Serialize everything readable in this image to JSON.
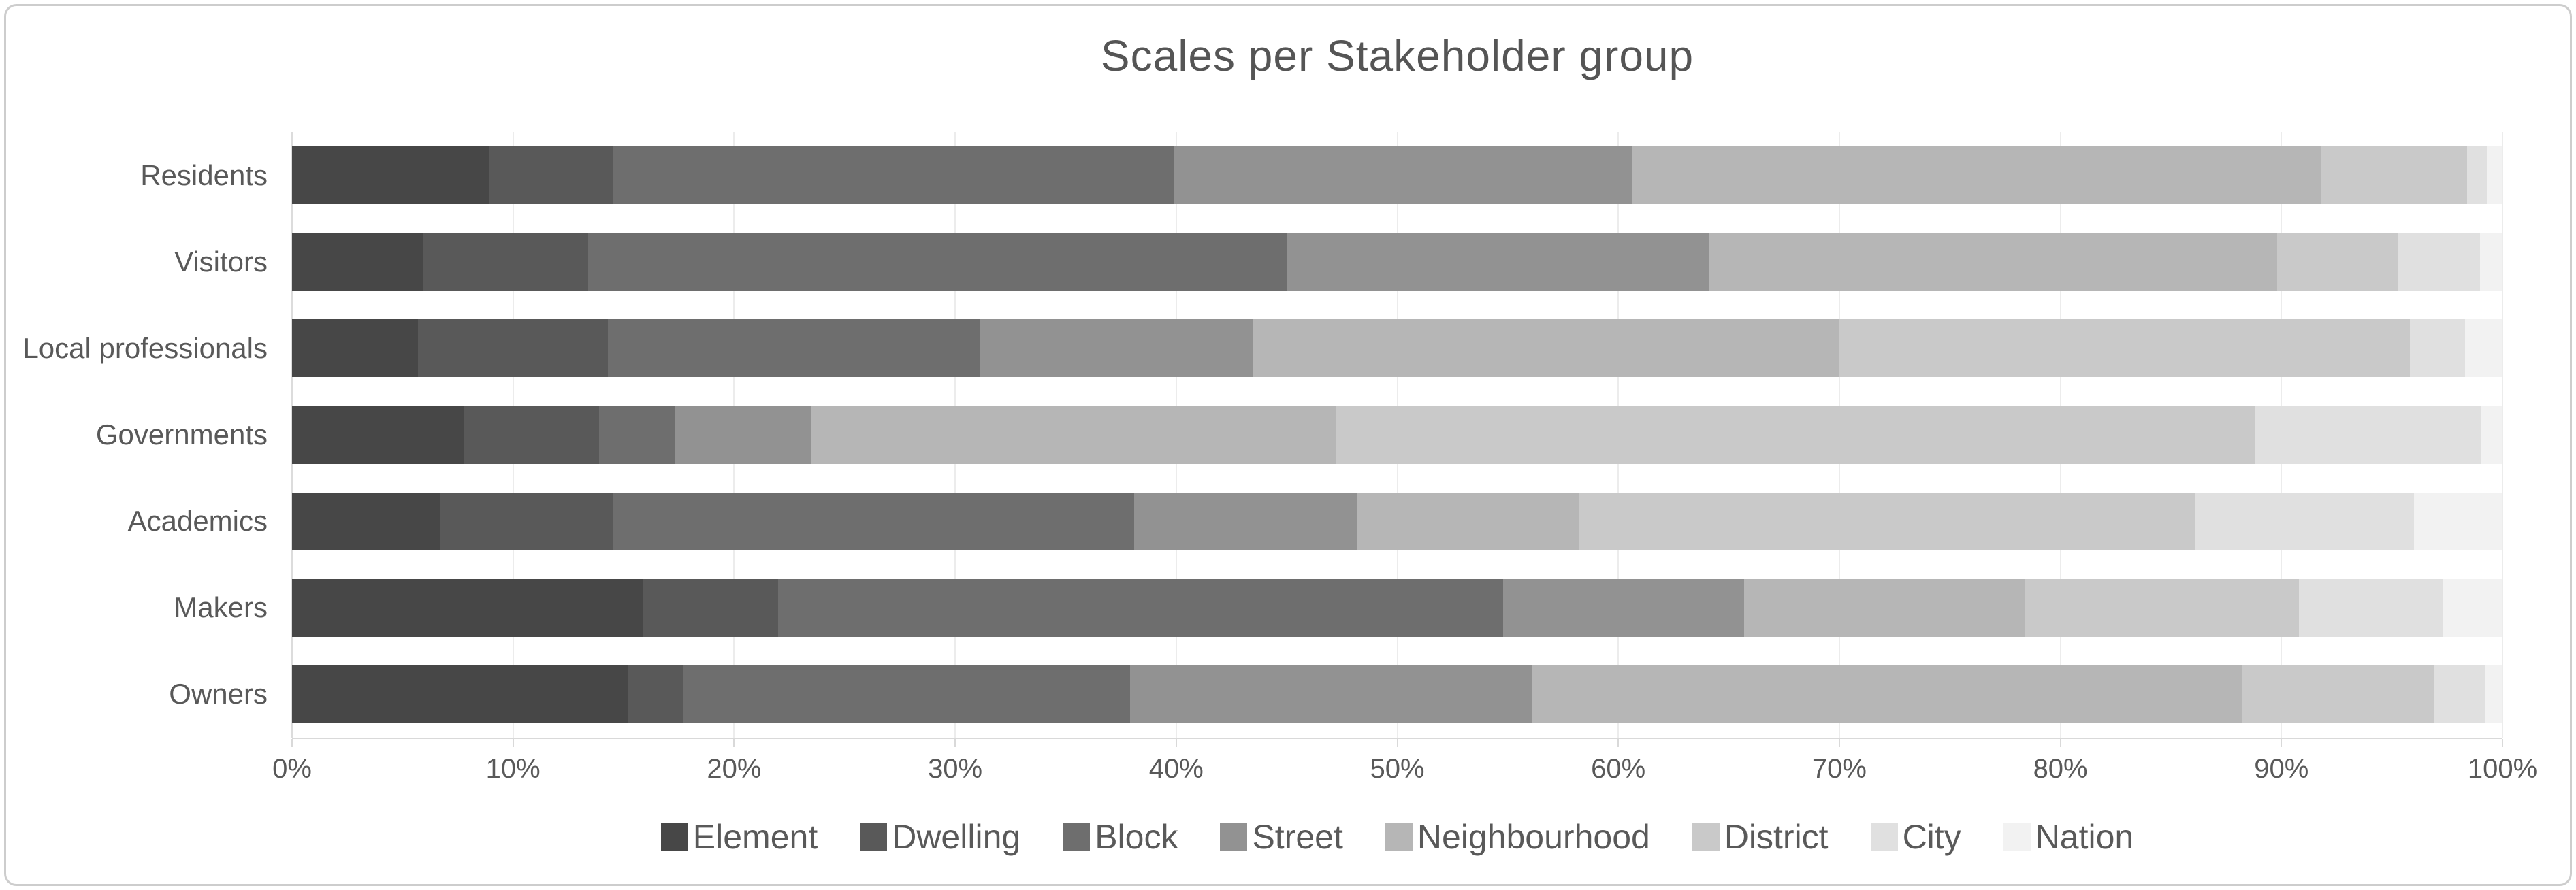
{
  "title": "Scales per Stakeholder group",
  "chart_data": {
    "type": "bar",
    "orientation": "horizontal",
    "stacked": true,
    "percent_stacked": true,
    "title": "Scales per Stakeholder group",
    "categories": [
      "Residents",
      "Visitors",
      "Local professionals",
      "Governments",
      "Academics",
      "Makers",
      "Owners"
    ],
    "series": [
      {
        "name": "Element",
        "color": "#474747",
        "values": [
          8.9,
          5.9,
          5.7,
          7.8,
          6.7,
          15.9,
          15.2
        ]
      },
      {
        "name": "Dwelling",
        "color": "#595959",
        "values": [
          5.6,
          7.5,
          8.6,
          6.1,
          7.8,
          6.1,
          2.5
        ]
      },
      {
        "name": "Block",
        "color": "#6e6e6e",
        "values": [
          25.4,
          31.6,
          16.8,
          3.4,
          23.6,
          32.8,
          20.2
        ]
      },
      {
        "name": "Street",
        "color": "#929292",
        "values": [
          20.7,
          19.1,
          12.4,
          6.2,
          10.1,
          10.9,
          18.2
        ]
      },
      {
        "name": "Neighbourhood",
        "color": "#b6b6b6",
        "values": [
          31.2,
          25.7,
          26.5,
          23.7,
          10.0,
          12.7,
          32.1
        ]
      },
      {
        "name": "District",
        "color": "#c9c9c9",
        "values": [
          6.6,
          5.5,
          25.8,
          41.6,
          27.9,
          12.4,
          8.7
        ]
      },
      {
        "name": "City",
        "color": "#e0e0e0",
        "values": [
          0.9,
          3.7,
          2.5,
          10.2,
          9.9,
          6.5,
          2.3
        ]
      },
      {
        "name": "Nation",
        "color": "#f2f2f2",
        "values": [
          0.7,
          1.0,
          1.7,
          1.0,
          4.0,
          2.7,
          0.8
        ]
      }
    ],
    "x_ticks": [
      "0%",
      "10%",
      "20%",
      "30%",
      "40%",
      "50%",
      "60%",
      "70%",
      "80%",
      "90%",
      "100%"
    ],
    "xlim": [
      0,
      100
    ],
    "grid": true,
    "legend_position": "bottom"
  },
  "colors": {
    "text": "#595959",
    "title_text": "#555555",
    "gridline": "#ececec",
    "axis_line": "#d9d9d9",
    "frame_border": "#cdcdcd",
    "background": "#ffffff"
  }
}
